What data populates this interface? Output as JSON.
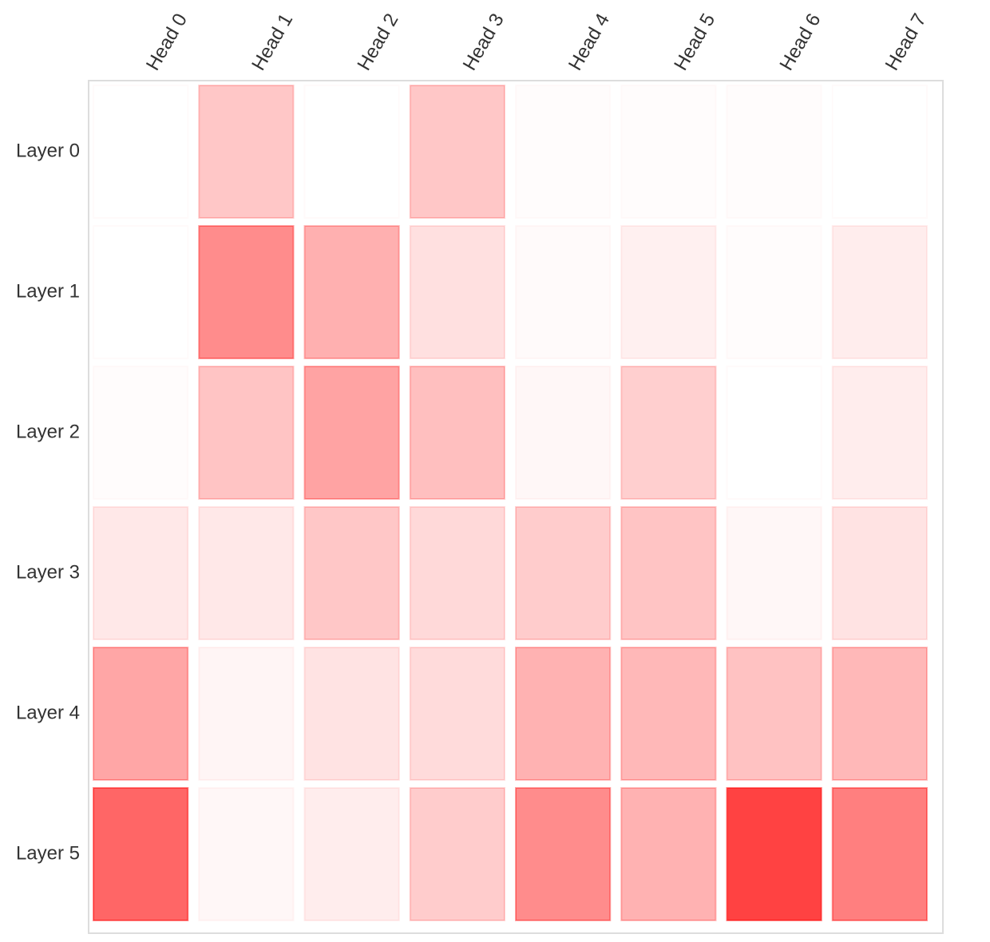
{
  "chart_data": {
    "type": "heatmap",
    "title": "",
    "xlabel": "",
    "ylabel": "",
    "columns": [
      "Head 0",
      "Head 1",
      "Head 2",
      "Head 3",
      "Head 4",
      "Head 5",
      "Head 6",
      "Head 7"
    ],
    "rows": [
      "Layer 0",
      "Layer 1",
      "Layer 2",
      "Layer 3",
      "Layer 4",
      "Layer 5"
    ],
    "values": [
      [
        0.0,
        0.22,
        0.0,
        0.22,
        0.01,
        0.01,
        0.01,
        0.0
      ],
      [
        0.0,
        0.45,
        0.31,
        0.12,
        0.02,
        0.06,
        0.01,
        0.07
      ],
      [
        0.01,
        0.23,
        0.36,
        0.25,
        0.03,
        0.19,
        0.0,
        0.07
      ],
      [
        0.09,
        0.09,
        0.22,
        0.15,
        0.2,
        0.23,
        0.03,
        0.11
      ],
      [
        0.35,
        0.04,
        0.11,
        0.14,
        0.3,
        0.28,
        0.24,
        0.28
      ],
      [
        0.6,
        0.03,
        0.07,
        0.2,
        0.45,
        0.3,
        0.74,
        0.5
      ]
    ],
    "value_range": [
      0,
      1
    ],
    "colors": {
      "cell": "#ff0000",
      "frame": "#dddddd",
      "label": "#333333"
    }
  }
}
